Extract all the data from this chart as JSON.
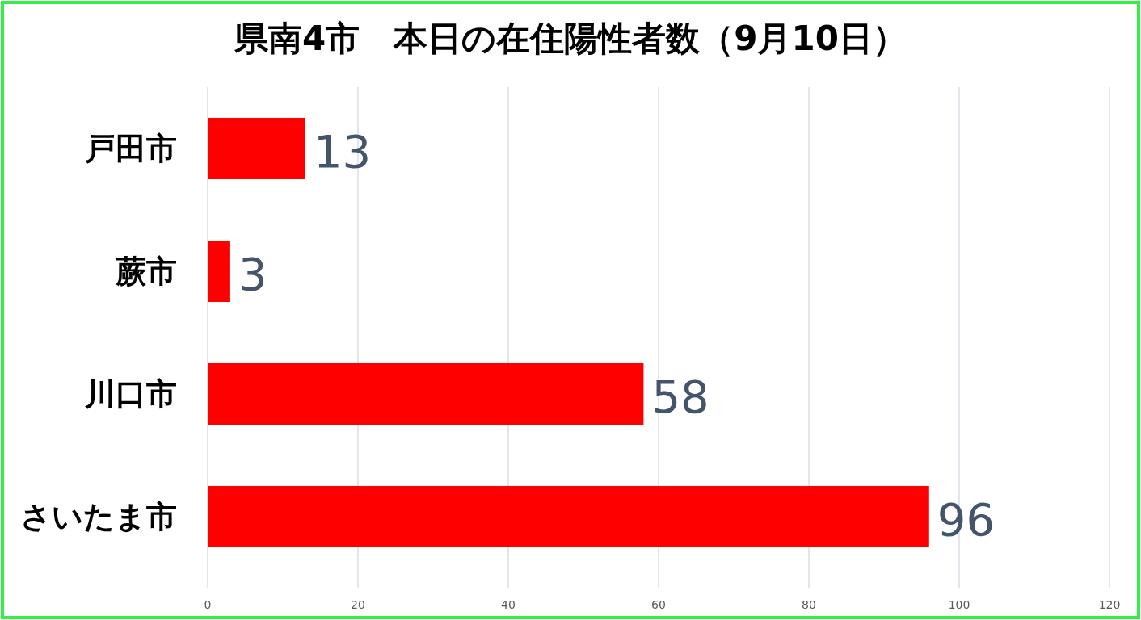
{
  "chart_data": {
    "type": "bar",
    "orientation": "horizontal",
    "title": "県南4市　本日の在住陽性者数（9月10日）",
    "categories": [
      "戸田市",
      "蕨市",
      "川口市",
      "さいたま市"
    ],
    "values": [
      13,
      3,
      58,
      96
    ],
    "color": "#ff0000",
    "xlim": [
      0,
      120
    ],
    "xticks": [
      0,
      20,
      40,
      60,
      80,
      100,
      120
    ],
    "grid": "x",
    "data_labels": true
  }
}
